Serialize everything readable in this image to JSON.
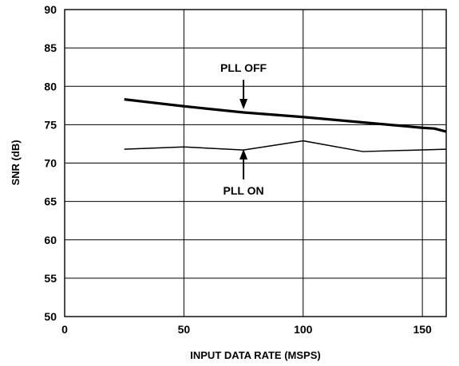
{
  "chart_data": {
    "type": "line",
    "title": "",
    "xlabel": "INPUT DATA RATE (MSPS)",
    "ylabel": "SNR (dB)",
    "xlim": [
      0,
      160
    ],
    "ylim": [
      50,
      90
    ],
    "x_ticks": [
      0,
      50,
      100,
      150
    ],
    "y_ticks": [
      50,
      55,
      60,
      65,
      70,
      75,
      80,
      85,
      90
    ],
    "grid": true,
    "series": [
      {
        "name": "PLL OFF",
        "line": "thick",
        "x": [
          25,
          50,
          75,
          100,
          125,
          150,
          155,
          160
        ],
        "y": [
          78.3,
          77.4,
          76.6,
          76.0,
          75.3,
          74.6,
          74.5,
          74.1
        ]
      },
      {
        "name": "PLL ON",
        "line": "thin",
        "x": [
          25,
          50,
          75,
          100,
          125,
          160
        ],
        "y": [
          71.8,
          72.1,
          71.7,
          72.9,
          71.5,
          71.8
        ]
      }
    ],
    "annotations": [
      {
        "text": "PLL OFF",
        "series": 0
      },
      {
        "text": "PLL ON",
        "series": 1
      }
    ]
  }
}
